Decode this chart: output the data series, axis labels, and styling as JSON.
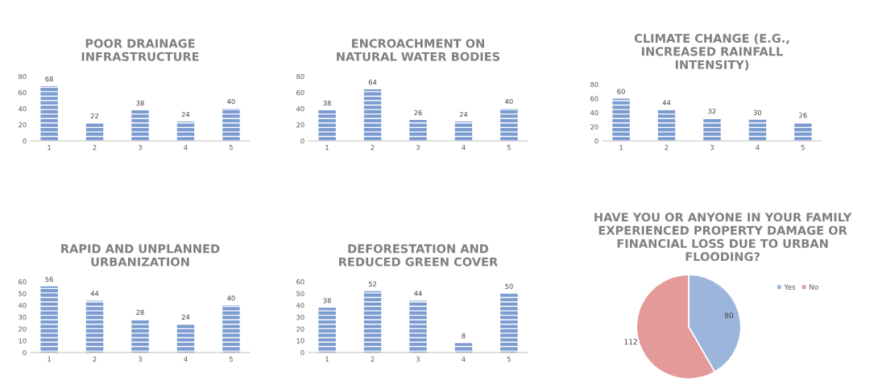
{
  "chart_data": [
    {
      "type": "bar",
      "title": "POOR DRAINAGE\nINFRASTRUCTURE",
      "categories": [
        "1",
        "2",
        "3",
        "4",
        "5"
      ],
      "values": [
        68,
        22,
        38,
        24,
        40
      ],
      "color": "#7b9bd1",
      "ylim": [
        0,
        80
      ],
      "yticks": [
        0,
        20,
        40,
        60,
        80
      ],
      "data_labels": true,
      "grid": false
    },
    {
      "type": "bar",
      "title": "ENCROACHMENT ON\nNATURAL WATER BODIES",
      "categories": [
        "1",
        "2",
        "3",
        "4",
        "5"
      ],
      "values": [
        38,
        64,
        26,
        24,
        40
      ],
      "color": "#7b9bd1",
      "ylim": [
        0,
        80
      ],
      "yticks": [
        0,
        20,
        40,
        60,
        80
      ],
      "data_labels": true,
      "grid": false
    },
    {
      "type": "bar",
      "title": "CLIMATE CHANGE (E.G.,\nINCREASED RAINFALL\nINTENSITY)",
      "categories": [
        "1",
        "2",
        "3",
        "4",
        "5"
      ],
      "values": [
        60,
        44,
        32,
        30,
        26
      ],
      "color": "#7b9bd1",
      "ylim": [
        0,
        80
      ],
      "yticks": [
        0,
        20,
        40,
        60,
        80
      ],
      "data_labels": true,
      "grid": false
    },
    {
      "type": "bar",
      "title": "RAPID AND UNPLANNED\nURBANIZATION",
      "categories": [
        "1",
        "2",
        "3",
        "4",
        "5"
      ],
      "values": [
        56,
        44,
        28,
        24,
        40
      ],
      "color": "#7b9bd1",
      "ylim": [
        0,
        60
      ],
      "yticks": [
        0,
        10,
        20,
        30,
        40,
        50,
        60
      ],
      "data_labels": true,
      "grid": false
    },
    {
      "type": "bar",
      "title": "DEFORESTATION AND\nREDUCED GREEN COVER",
      "categories": [
        "1",
        "2",
        "3",
        "4",
        "5"
      ],
      "values": [
        38,
        52,
        44,
        8,
        50
      ],
      "color": "#7b9bd1",
      "ylim": [
        0,
        60
      ],
      "yticks": [
        0,
        10,
        20,
        30,
        40,
        50,
        60
      ],
      "data_labels": true,
      "grid": false
    },
    {
      "type": "pie",
      "title": "HAVE YOU OR ANYONE IN YOUR FAMILY\nEXPERIENCED PROPERTY DAMAGE OR\nFINANCIAL LOSS DUE TO URBAN\nFLOODING?",
      "categories": [
        "Yes",
        "No"
      ],
      "values": [
        80,
        112
      ],
      "colors": [
        "#9bb5dd",
        "#e39a98"
      ],
      "data_labels": true,
      "legend": "top right"
    }
  ]
}
